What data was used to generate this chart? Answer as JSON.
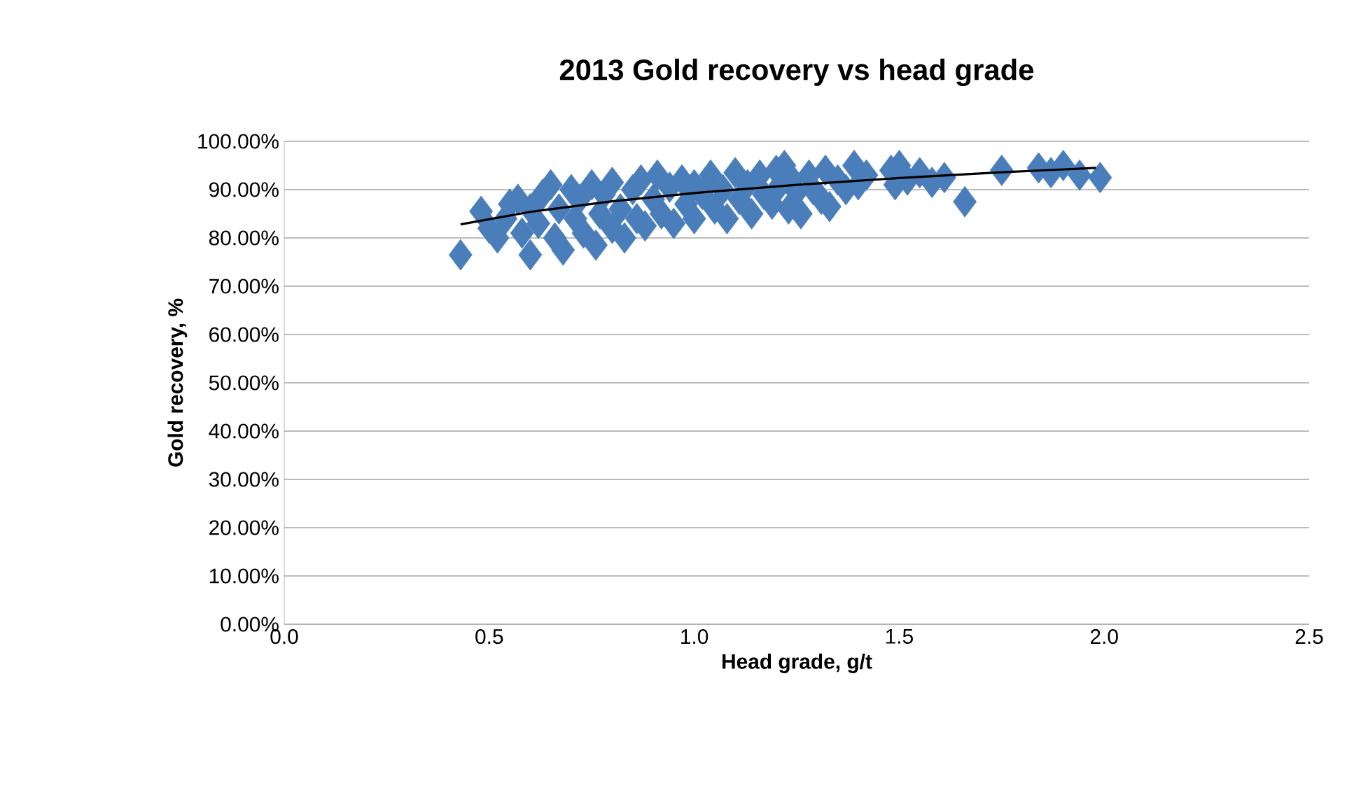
{
  "chart_data": {
    "type": "scatter",
    "title": "2013 Gold recovery vs head grade",
    "xlabel": "Head grade, g/t",
    "ylabel": "Gold recovery, %",
    "xlim": [
      0,
      2.5
    ],
    "xticks": [
      {
        "value": 0,
        "label": "0.0"
      },
      {
        "value": 0.5,
        "label": "0.5"
      },
      {
        "value": 1,
        "label": "1.0"
      },
      {
        "value": 1.5,
        "label": "1.5"
      },
      {
        "value": 2,
        "label": "2.0"
      },
      {
        "value": 2.5,
        "label": "2.5"
      }
    ],
    "ylim": [
      0,
      100
    ],
    "yticks": [
      {
        "value": 0,
        "label": "0.00%"
      },
      {
        "value": 10,
        "label": "10.00%"
      },
      {
        "value": 20,
        "label": "20.00%"
      },
      {
        "value": 30,
        "label": "30.00%"
      },
      {
        "value": 40,
        "label": "40.00%"
      },
      {
        "value": 50,
        "label": "50.00%"
      },
      {
        "value": 60,
        "label": "60.00%"
      },
      {
        "value": 70,
        "label": "70.00%"
      },
      {
        "value": 80,
        "label": "80.00%"
      },
      {
        "value": 90,
        "label": "90.00%"
      },
      {
        "value": 100,
        "label": "100.00%"
      }
    ],
    "grid": "y",
    "marker": "diamond",
    "series": [
      {
        "color": "#4a7ebb",
        "x": [
          0.43,
          0.48,
          0.5,
          0.52,
          0.54,
          0.55,
          0.57,
          0.58,
          0.6,
          0.6,
          0.62,
          0.63,
          0.65,
          0.66,
          0.67,
          0.68,
          0.7,
          0.71,
          0.72,
          0.73,
          0.75,
          0.76,
          0.77,
          0.78,
          0.8,
          0.8,
          0.82,
          0.83,
          0.85,
          0.86,
          0.87,
          0.88,
          0.9,
          0.91,
          0.92,
          0.94,
          0.95,
          0.97,
          0.98,
          1.0,
          1.0,
          1.02,
          1.04,
          1.05,
          1.07,
          1.08,
          1.1,
          1.11,
          1.13,
          1.14,
          1.16,
          1.17,
          1.19,
          1.2,
          1.21,
          1.22,
          1.23,
          1.24,
          1.25,
          1.26,
          1.28,
          1.29,
          1.31,
          1.32,
          1.33,
          1.35,
          1.37,
          1.39,
          1.4,
          1.42,
          1.48,
          1.49,
          1.5,
          1.52,
          1.55,
          1.58,
          1.61,
          1.66,
          1.75,
          1.84,
          1.87,
          1.9,
          1.94,
          1.99
        ],
        "values": [
          76.5,
          85.5,
          82,
          80,
          84,
          87,
          88,
          81,
          76.5,
          86,
          83,
          89,
          91,
          80,
          86,
          77.5,
          90,
          84,
          88,
          81,
          91,
          78.5,
          85,
          89,
          82,
          91.5,
          86,
          80,
          90,
          84,
          92,
          82.5,
          88,
          93,
          85,
          90.5,
          83,
          92,
          87,
          84,
          91,
          89,
          93,
          86,
          90,
          84,
          93.5,
          88,
          91,
          85,
          93,
          89,
          87,
          94,
          91,
          95,
          86,
          92,
          89.5,
          85,
          93,
          90,
          88,
          94,
          86.5,
          92,
          90,
          95,
          91,
          93,
          94,
          91,
          95,
          92,
          93.5,
          91.5,
          92.5,
          87.5,
          94,
          94.5,
          93.5,
          95,
          93,
          92.5
        ]
      },
      {
        "type": "line",
        "color": "#000000",
        "marker": "none",
        "x": [
          0.43,
          0.6,
          0.8,
          1.0,
          1.25,
          1.5,
          1.75,
          1.98
        ],
        "values": [
          82.8,
          85.4,
          87.6,
          89.3,
          91.0,
          92.4,
          93.6,
          94.5
        ]
      }
    ]
  }
}
